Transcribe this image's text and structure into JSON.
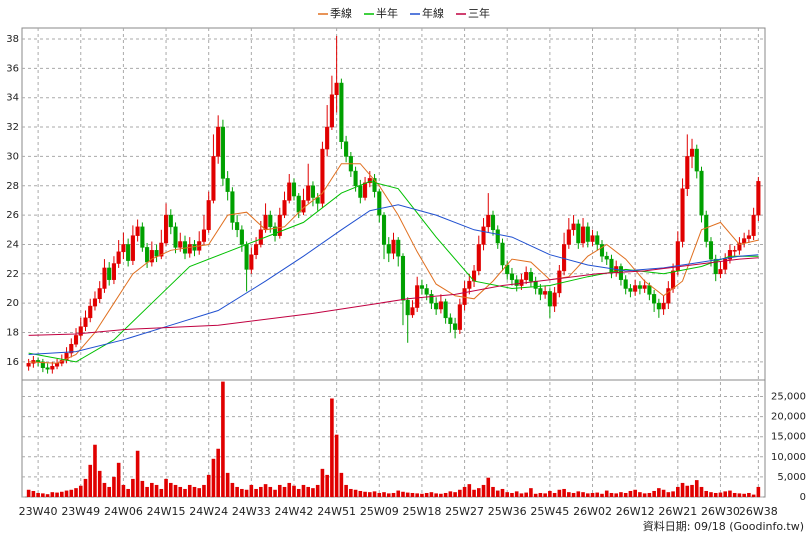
{
  "chart_data": {
    "type": "candlestick",
    "x": [
      0,
      1,
      2,
      3,
      4,
      5,
      6,
      7,
      8,
      9,
      10,
      11,
      12,
      13,
      14,
      15,
      16,
      17,
      18,
      19,
      20,
      21,
      22,
      23,
      24,
      25,
      26,
      27,
      28,
      29,
      30,
      31,
      32,
      33,
      34,
      35,
      36,
      37,
      38,
      39,
      40,
      41,
      42,
      43,
      44,
      45,
      46,
      47,
      48,
      49,
      50,
      51,
      52,
      53,
      54,
      55,
      56,
      57,
      58,
      59,
      60,
      61,
      62,
      63,
      64,
      65,
      66,
      67,
      68,
      69,
      70,
      71,
      72,
      73,
      74,
      75,
      76,
      77,
      78,
      79,
      80,
      81,
      82,
      83,
      84,
      85,
      86,
      87,
      88,
      89,
      90,
      91,
      92,
      93,
      94,
      95,
      96,
      97,
      98,
      99,
      100,
      101,
      102,
      103,
      104,
      105,
      106,
      107,
      108,
      109,
      110,
      111,
      112,
      113,
      114,
      115,
      116,
      117,
      118,
      119,
      120,
      121,
      122,
      123,
      124,
      125,
      126,
      127,
      128,
      129,
      130,
      131,
      132,
      133,
      134,
      135,
      136,
      137,
      138,
      139,
      140,
      141,
      142,
      143,
      144,
      145,
      146,
      147,
      148,
      149,
      150,
      151,
      152,
      153,
      154
    ],
    "open": [
      15.7,
      15.9,
      16.1,
      16.0,
      15.6,
      15.5,
      15.7,
      15.9,
      16.1,
      16.6,
      17.2,
      17.8,
      18.4,
      19.0,
      19.8,
      20.3,
      21.0,
      22.4,
      21.6,
      22.7,
      23.5,
      24.0,
      22.9,
      24.6,
      25.2,
      23.8,
      22.8,
      23.6,
      23.2,
      24.1,
      26.0,
      25.2,
      23.8,
      24.2,
      23.4,
      24.0,
      23.6,
      24.2,
      25.0,
      27.0,
      30.0,
      32.0,
      28.5,
      27.6,
      25.5,
      25.0,
      24.0,
      22.3,
      23.3,
      24.0,
      25.0,
      26.0,
      25.2,
      24.6,
      26.0,
      27.0,
      28.2,
      27.3,
      26.2,
      27.0,
      28.0,
      27.2,
      26.8,
      30.5,
      32.0,
      34.2,
      35.0,
      31.0,
      30.0,
      29.0,
      28.0,
      27.2,
      28.2,
      28.5,
      27.6,
      26.0,
      24.0,
      23.4,
      24.3,
      23.2,
      20.2,
      19.2,
      19.7,
      21.2,
      21.0,
      20.6,
      20.0,
      19.6,
      20.1,
      19.0,
      18.6,
      18.2,
      19.9,
      21.0,
      21.5,
      22.2,
      24.0,
      25.2,
      26.0,
      25.0,
      24.1,
      22.6,
      22.0,
      21.6,
      21.2,
      21.6,
      22.1,
      21.5,
      21.0,
      20.6,
      20.8,
      19.8,
      20.7,
      22.2,
      24.0,
      25.0,
      25.4,
      24.1,
      25.2,
      24.2,
      24.6,
      24.0,
      23.2,
      23.0,
      22.1,
      22.5,
      21.6,
      21.0,
      20.8,
      21.2,
      21.0,
      21.2,
      20.6,
      20.0,
      19.6,
      20.0,
      21.0,
      22.2,
      24.2,
      27.8,
      30.0,
      30.5,
      29.0,
      26.0,
      24.2,
      23.0,
      22.0,
      22.3,
      23.0,
      23.6,
      23.6,
      24.1,
      24.4,
      24.6,
      26.0
    ],
    "high": [
      16.2,
      16.4,
      16.3,
      16.2,
      15.9,
      16.0,
      16.2,
      16.5,
      17.0,
      17.6,
      18.3,
      19.0,
      19.5,
      20.3,
      20.8,
      21.5,
      23.0,
      22.8,
      23.2,
      24.3,
      24.8,
      24.4,
      25.3,
      25.7,
      25.5,
      24.1,
      24.2,
      24.0,
      25.0,
      26.8,
      26.4,
      25.5,
      24.8,
      24.6,
      24.5,
      24.3,
      24.9,
      26.0,
      27.6,
      31.5,
      32.8,
      32.5,
      29.0,
      27.9,
      26.0,
      25.3,
      24.2,
      23.8,
      24.5,
      25.6,
      26.8,
      26.3,
      25.5,
      26.5,
      27.6,
      28.8,
      28.5,
      27.5,
      27.8,
      29.5,
      28.3,
      27.5,
      31.0,
      33.5,
      35.5,
      38.2,
      35.3,
      31.4,
      30.3,
      29.3,
      28.4,
      28.6,
      29.0,
      28.8,
      27.8,
      26.2,
      24.5,
      24.8,
      24.5,
      23.4,
      20.4,
      20.2,
      21.8,
      21.6,
      21.3,
      20.9,
      20.4,
      20.6,
      20.3,
      19.3,
      19.0,
      20.3,
      21.5,
      22.0,
      22.6,
      24.6,
      25.8,
      27.5,
      26.3,
      25.3,
      24.4,
      22.9,
      22.4,
      21.9,
      22.0,
      22.5,
      22.4,
      21.8,
      21.3,
      21.2,
      21.0,
      21.1,
      22.6,
      24.8,
      25.8,
      26.0,
      25.7,
      25.8,
      25.5,
      25.0,
      24.9,
      24.3,
      23.5,
      23.3,
      22.9,
      22.7,
      21.9,
      21.3,
      21.6,
      21.5,
      21.6,
      21.4,
      20.9,
      20.3,
      20.5,
      21.5,
      22.7,
      24.9,
      28.5,
      31.5,
      31.2,
      30.8,
      29.3,
      26.3,
      24.5,
      23.3,
      22.8,
      23.4,
      24.0,
      23.9,
      24.5,
      24.8,
      25.0,
      26.5,
      28.6
    ],
    "low": [
      15.4,
      15.6,
      15.7,
      15.3,
      15.2,
      15.2,
      15.5,
      15.7,
      15.9,
      16.3,
      17.0,
      17.5,
      18.1,
      18.7,
      19.5,
      20.0,
      20.7,
      21.2,
      21.3,
      22.4,
      23.0,
      22.5,
      22.6,
      24.2,
      23.5,
      22.4,
      22.5,
      22.8,
      23.0,
      23.9,
      24.7,
      23.4,
      23.5,
      23.0,
      23.1,
      23.2,
      23.3,
      24.0,
      24.8,
      26.8,
      29.5,
      28.0,
      27.0,
      25.0,
      24.5,
      23.5,
      20.8,
      22.0,
      23.0,
      23.8,
      24.8,
      24.8,
      24.2,
      24.4,
      25.8,
      26.8,
      27.0,
      25.8,
      26.0,
      26.8,
      26.6,
      26.3,
      26.5,
      30.0,
      31.8,
      33.0,
      30.5,
      29.6,
      28.6,
      27.6,
      26.8,
      27.0,
      27.9,
      27.2,
      25.5,
      23.0,
      22.8,
      23.0,
      22.5,
      18.5,
      17.3,
      19.0,
      19.4,
      20.6,
      20.2,
      19.6,
      19.2,
      19.3,
      18.6,
      18.0,
      17.6,
      17.9,
      19.5,
      20.6,
      21.1,
      21.9,
      23.6,
      24.8,
      24.6,
      23.7,
      22.2,
      21.6,
      21.2,
      20.8,
      20.9,
      21.3,
      21.1,
      20.6,
      20.2,
      20.3,
      19.0,
      19.4,
      20.4,
      21.9,
      23.7,
      24.6,
      23.7,
      23.8,
      23.8,
      23.9,
      23.6,
      22.8,
      22.6,
      21.7,
      21.8,
      21.2,
      20.6,
      20.4,
      20.5,
      20.6,
      20.7,
      20.2,
      19.4,
      19.0,
      19.2,
      19.6,
      20.7,
      21.9,
      23.8,
      27.3,
      29.2,
      28.5,
      25.5,
      23.8,
      22.5,
      21.5,
      21.7,
      22.0,
      22.7,
      23.2,
      23.3,
      23.8,
      24.1,
      24.3,
      25.6
    ],
    "close": [
      15.9,
      16.1,
      16.0,
      15.6,
      15.5,
      15.7,
      15.9,
      16.1,
      16.6,
      17.2,
      17.8,
      18.4,
      19.0,
      19.8,
      20.3,
      21.0,
      22.4,
      21.6,
      22.7,
      23.5,
      24.0,
      22.9,
      24.6,
      25.2,
      23.8,
      22.8,
      23.6,
      23.2,
      24.1,
      26.0,
      25.2,
      23.8,
      24.2,
      23.4,
      24.0,
      23.6,
      24.2,
      25.0,
      27.0,
      30.0,
      32.0,
      28.5,
      27.6,
      25.5,
      25.0,
      24.0,
      22.3,
      23.3,
      24.0,
      25.0,
      26.0,
      25.2,
      24.6,
      26.0,
      27.0,
      28.2,
      27.3,
      26.2,
      27.0,
      28.0,
      27.2,
      26.8,
      30.5,
      32.0,
      34.2,
      35.0,
      31.0,
      30.0,
      29.0,
      28.0,
      27.2,
      28.2,
      28.5,
      27.6,
      26.0,
      24.0,
      23.4,
      24.3,
      23.2,
      20.2,
      19.2,
      19.7,
      21.2,
      21.0,
      20.6,
      20.0,
      19.6,
      20.1,
      19.0,
      18.6,
      18.2,
      19.9,
      21.0,
      21.5,
      22.2,
      24.0,
      25.2,
      26.0,
      25.0,
      24.1,
      22.6,
      22.0,
      21.6,
      21.2,
      21.6,
      22.1,
      21.5,
      21.0,
      20.6,
      20.8,
      19.8,
      20.7,
      22.2,
      24.0,
      25.0,
      25.4,
      24.1,
      25.2,
      24.2,
      24.6,
      24.0,
      23.2,
      23.0,
      22.1,
      22.5,
      21.6,
      21.0,
      20.8,
      21.2,
      21.0,
      21.2,
      20.6,
      20.0,
      19.6,
      20.0,
      21.0,
      22.2,
      24.2,
      27.8,
      30.0,
      30.5,
      29.0,
      26.0,
      24.2,
      23.0,
      22.0,
      22.3,
      23.0,
      23.6,
      23.6,
      24.1,
      24.4,
      24.6,
      26.0,
      28.3
    ],
    "up_color": "#e00000",
    "down_color": "#00a000",
    "xlim": [
      -1.4,
      155.4
    ],
    "xticks": [
      {
        "value": 2,
        "label": "23W40"
      },
      {
        "value": 11,
        "label": "23W49"
      },
      {
        "value": 20,
        "label": "24W06"
      },
      {
        "value": 29,
        "label": "24W15"
      },
      {
        "value": 38,
        "label": "24W24"
      },
      {
        "value": 47,
        "label": "24W33"
      },
      {
        "value": 56,
        "label": "24W42"
      },
      {
        "value": 65,
        "label": "24W51"
      },
      {
        "value": 74,
        "label": "25W09"
      },
      {
        "value": 83,
        "label": "25W18"
      },
      {
        "value": 92,
        "label": "25W27"
      },
      {
        "value": 101,
        "label": "25W36"
      },
      {
        "value": 110,
        "label": "25W45"
      },
      {
        "value": 119,
        "label": "26W02"
      },
      {
        "value": 128,
        "label": "26W12"
      },
      {
        "value": 137,
        "label": "26W21"
      },
      {
        "value": 146,
        "label": "26W30"
      },
      {
        "value": 154,
        "label": "26W38"
      }
    ],
    "ylim": [
      14.9,
      38.75
    ],
    "yticks": [
      16,
      18,
      20,
      22,
      24,
      26,
      28,
      30,
      32,
      34,
      36,
      38
    ],
    "grid": true,
    "volume": {
      "color": "#e00000",
      "values": [
        1800,
        1500,
        1000,
        900,
        700,
        1200,
        1100,
        1300,
        1600,
        1800,
        2200,
        2800,
        4500,
        8000,
        13000,
        6500,
        3500,
        2500,
        5000,
        8500,
        3000,
        2000,
        4500,
        11500,
        4000,
        2500,
        3500,
        3000,
        2000,
        4500,
        3500,
        3000,
        2500,
        2000,
        3000,
        2500,
        2200,
        3000,
        5500,
        9500,
        12000,
        28700,
        6000,
        3500,
        2500,
        2000,
        1800,
        3000,
        2000,
        2500,
        3200,
        2500,
        1800,
        3000,
        2500,
        3500,
        2800,
        2000,
        3000,
        2500,
        2200,
        3000,
        7000,
        5500,
        24500,
        15500,
        6000,
        3000,
        2000,
        1800,
        1500,
        1300,
        1200,
        1400,
        1000,
        1200,
        900,
        1000,
        1600,
        1300,
        1100,
        1000,
        900,
        800,
        1000,
        1200,
        900,
        800,
        1000,
        1400,
        1200,
        1800,
        2500,
        3200,
        1800,
        2200,
        3000,
        4800,
        2500,
        1600,
        2000,
        1200,
        1000,
        1400,
        900,
        1100,
        2200,
        800,
        1000,
        900,
        1500,
        1000,
        1800,
        2000,
        1200,
        1000,
        1400,
        1200,
        900,
        1000,
        1100,
        800,
        1600,
        1000,
        900,
        1200,
        1000,
        1500,
        1800,
        1200,
        900,
        1000,
        1500,
        2200,
        1800,
        1200,
        1400,
        2500,
        3500,
        2800,
        3000,
        4200,
        2500,
        1500,
        1200,
        1000,
        1100,
        1400,
        1600,
        1000,
        900,
        800,
        1000,
        600,
        2500
      ],
      "y2lim": [
        0,
        29100
      ],
      "y2ticks": [
        0,
        {
          "value": 5000,
          "label": "5,000"
        },
        {
          "value": 10000,
          "label": "10,000"
        },
        {
          "value": 15000,
          "label": "15,000"
        },
        {
          "value": 20000,
          "label": "20,000"
        },
        {
          "value": 25000,
          "label": "25,000"
        }
      ]
    },
    "series": [
      {
        "name": "季線",
        "color": "#e07020",
        "x": [
          0,
          6,
          10,
          14,
          18,
          22,
          26,
          30,
          34,
          38,
          42,
          46,
          50,
          54,
          58,
          62,
          66,
          70,
          74,
          78,
          82,
          86,
          90,
          94,
          98,
          102,
          106,
          110,
          114,
          118,
          122,
          126,
          130,
          134,
          138,
          142,
          146,
          150,
          154
        ],
        "values": [
          16.0,
          15.9,
          16.5,
          18,
          20,
          22,
          23,
          23.6,
          23.8,
          24,
          26,
          26.2,
          25,
          25.2,
          26.5,
          27.5,
          29.5,
          29.5,
          28,
          26,
          23.5,
          21.3,
          20.5,
          20.3,
          21.5,
          23,
          22.8,
          21.6,
          21.8,
          23.2,
          24,
          23,
          21.5,
          20.5,
          21.5,
          25,
          25.5,
          24,
          24.3
        ]
      },
      {
        "name": "半年",
        "color": "#00c000",
        "x": [
          0,
          10,
          18,
          26,
          34,
          42,
          50,
          58,
          66,
          72,
          78,
          86,
          94,
          102,
          110,
          118,
          126,
          134,
          142,
          148,
          154
        ],
        "values": [
          16.6,
          16,
          17.5,
          20,
          22.5,
          23.5,
          24.5,
          25.5,
          27.5,
          28.3,
          27.8,
          24.5,
          21.5,
          21,
          21.2,
          21.8,
          22.3,
          22,
          22.5,
          23.2,
          23.2
        ]
      },
      {
        "name": "年線",
        "color": "#2050d0",
        "x": [
          0,
          10,
          20,
          30,
          40,
          50,
          58,
          66,
          72,
          78,
          86,
          94,
          102,
          110,
          118,
          126,
          134,
          142,
          150,
          154
        ],
        "values": [
          16.5,
          16.7,
          17.5,
          18.5,
          19.5,
          21.5,
          23.2,
          25,
          26.3,
          26.7,
          26,
          25,
          24.5,
          23.3,
          22.6,
          22.2,
          22.4,
          22.8,
          23.2,
          23.3
        ]
      },
      {
        "name": "三年",
        "color": "#c00040",
        "x": [
          0,
          10,
          20,
          40,
          60,
          74,
          80,
          90,
          100,
          110,
          120,
          130,
          140,
          150,
          154
        ],
        "values": [
          17.8,
          17.9,
          18.2,
          18.5,
          19.3,
          20,
          20.3,
          20.6,
          21.2,
          21.6,
          22.0,
          22.2,
          22.6,
          23.0,
          23.1
        ]
      }
    ],
    "footer": "資料日期: 09/18 (Goodinfo.tw)"
  }
}
